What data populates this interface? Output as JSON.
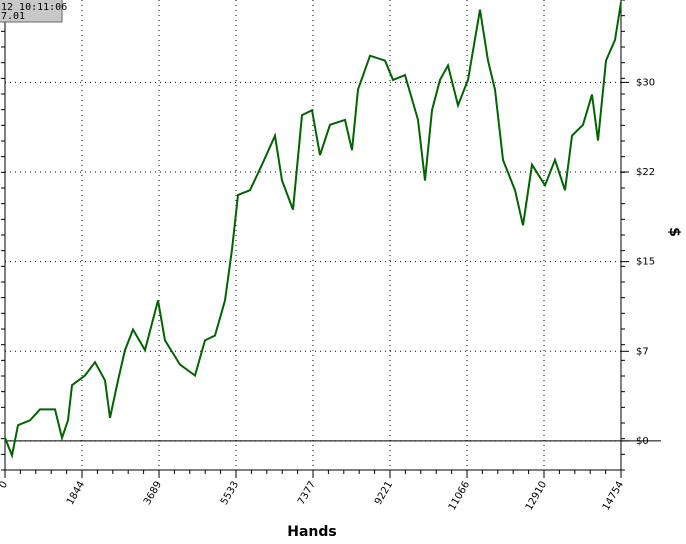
{
  "chart_data": {
    "type": "line",
    "x_label": "Hands",
    "y_label": "$",
    "x": [
      0,
      168,
      311,
      599,
      838,
      1198,
      1365,
      1509,
      1605,
      1916,
      2156,
      2395,
      2515,
      2706,
      2874,
      3066,
      3353,
      3664,
      3832,
      4191,
      4551,
      4790,
      5030,
      5269,
      5437,
      5580,
      5868,
      6155,
      6467,
      6634,
      6898,
      7113,
      7353,
      7544,
      7784,
      8143,
      8311,
      8454,
      8742,
      9101,
      9293,
      9580,
      9891,
      10059,
      10227,
      10418,
      10610,
      10849,
      11089,
      11376,
      11568,
      11736,
      11927,
      12215,
      12406,
      12622,
      12933,
      13173,
      13412,
      13580,
      13843,
      14059,
      14203,
      14394,
      14610,
      14754
    ],
    "series": [
      {
        "color": "#006400",
        "values": [
          0.25,
          -1.2,
          1.3,
          1.7,
          2.6,
          2.6,
          0.25,
          1.7,
          4.6,
          5.4,
          6.5,
          5.0,
          1.9,
          5.0,
          7.5,
          9.2,
          7.5,
          11.6,
          8.3,
          6.3,
          5.4,
          8.3,
          8.7,
          11.6,
          15.8,
          20.3,
          20.7,
          22.8,
          25.2,
          21.5,
          19.1,
          26.9,
          27.3,
          23.6,
          26.1,
          26.5,
          24.0,
          29.0,
          31.8,
          31.4,
          29.8,
          30.2,
          26.5,
          21.5,
          27.3,
          29.8,
          31.0,
          27.7,
          29.8,
          35.6,
          31.4,
          29.0,
          23.2,
          20.7,
          17.8,
          22.8,
          21.1,
          23.2,
          20.7,
          25.2,
          26.1,
          28.6,
          24.8,
          31.4,
          33.1,
          36.2
        ]
      }
    ],
    "xlim": [
      0,
      14754
    ],
    "xticks": [
      0,
      1844,
      3689,
      5533,
      7377,
      9221,
      11066,
      12910,
      14754
    ],
    "ylim": [
      -2.4,
      36.4
    ],
    "yticks": [
      {
        "value": 0,
        "label": "$0"
      },
      {
        "value": 7.4,
        "label": "$7"
      },
      {
        "value": 14.8,
        "label": "$15"
      },
      {
        "value": 22.2,
        "label": "$22"
      },
      {
        "value": 29.6,
        "label": "$30"
      }
    ],
    "grid": true
  },
  "tooltip": {
    "lines": [
      "12 10:11:06",
      "7.01"
    ]
  }
}
